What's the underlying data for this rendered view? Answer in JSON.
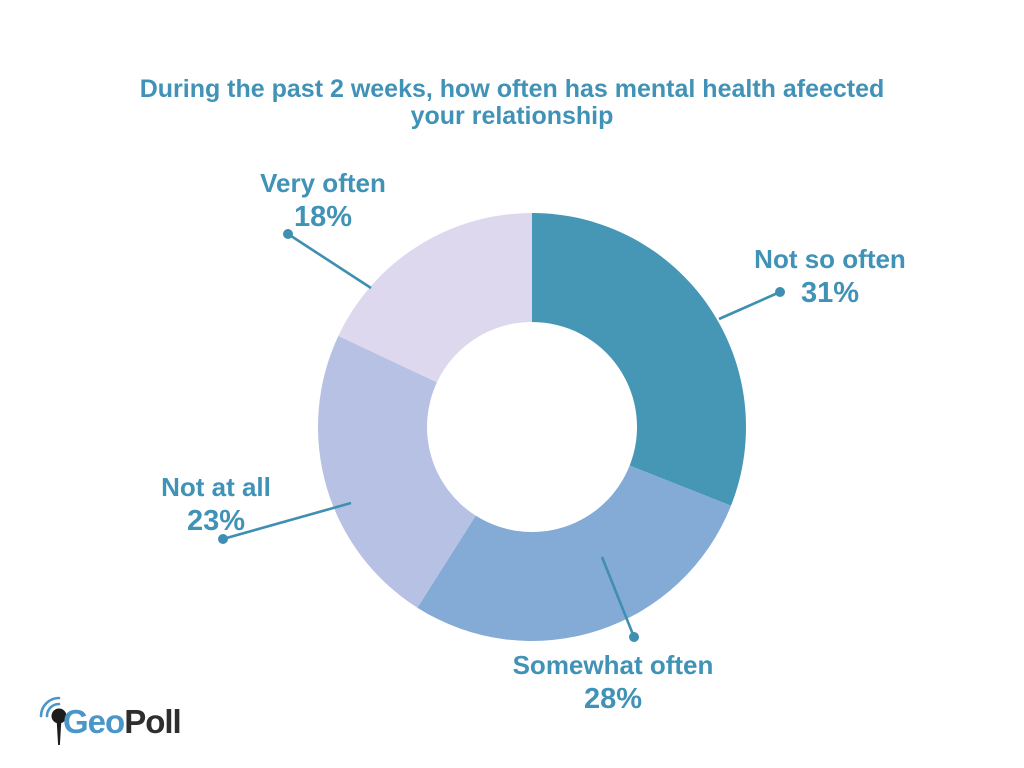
{
  "page": {
    "background": "#ffffff"
  },
  "heading": {
    "line1": "During the past 2 weeks, how often has mental health afeected",
    "line2": "your relationship",
    "color": "#4092B6"
  },
  "chart_data": {
    "type": "pie",
    "subtype": "donut",
    "title": "During the past 2 weeks, how often has mental health afeected your relationship",
    "unit": "%",
    "direction": "clockwise",
    "start_angle_deg": 0,
    "inner_radius_ratio": 0.49,
    "legend_position": "outside-callouts",
    "label_color": "#4092B6",
    "leader_line_color": "#3E8FB2",
    "slices": [
      {
        "label": "Not so often",
        "value": 31,
        "display": "31%",
        "color": "#4697B6"
      },
      {
        "label": "Somewhat often",
        "value": 28,
        "display": "28%",
        "color": "#84ABD5"
      },
      {
        "label": "Not at all",
        "value": 23,
        "display": "23%",
        "color": "#B7C1E3"
      },
      {
        "label": "Very often",
        "value": 18,
        "display": "18%",
        "color": "#DED8EF"
      }
    ]
  },
  "logo": {
    "geo": "Geo",
    "poll": "Poll",
    "geo_color": "#4A96C8",
    "poll_color": "#2E2E2E",
    "pin_color": "#1C1C1C"
  }
}
